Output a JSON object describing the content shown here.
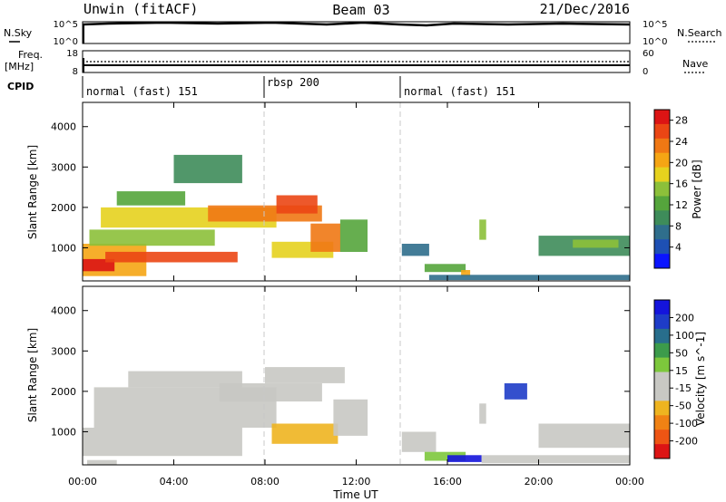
{
  "header": {
    "station": "Unwin (fitACF)",
    "beam": "Beam 03",
    "date": "21/Dec/2016"
  },
  "nsky": {
    "label": "N.Sky",
    "right_label": "N.Search",
    "ticks_left": [
      "10^5",
      "10^0"
    ],
    "ticks_right": [
      "10^5",
      "10^0"
    ]
  },
  "freq": {
    "label_line1": "Freq.",
    "label_line2": "[MHz]",
    "ticks_left": [
      "18",
      "8"
    ],
    "right_label": "Nave",
    "ticks_right": [
      "60",
      "0"
    ]
  },
  "cpid": {
    "label": "CPID",
    "segments": [
      {
        "label": "normal (fast) 151",
        "start_hour": 0,
        "end_hour": 8
      },
      {
        "label": "rbsp 200",
        "start_hour": 8,
        "end_hour": 14
      },
      {
        "label": "normal (fast) 151",
        "start_hour": 14,
        "end_hour": 24
      }
    ]
  },
  "axes": {
    "xlabel": "Time UT",
    "xticks": [
      "00:00",
      "04:00",
      "08:00",
      "12:00",
      "16:00",
      "20:00",
      "00:00"
    ],
    "ylabel": "Slant Range [km]",
    "yticks": [
      "1000",
      "2000",
      "3000",
      "4000"
    ]
  },
  "colors": {
    "power": [
      "#0a14ff",
      "#1e50b4",
      "#2f6e8c",
      "#3e8c5a",
      "#55a53c",
      "#8cc03a",
      "#e6d21e",
      "#f5a514",
      "#f07814",
      "#eb4614",
      "#dc1414"
    ],
    "velocity": [
      "#1414dc",
      "#1e3cc8",
      "#286e8c",
      "#3c9b4b",
      "#7dc83c",
      "#c8c8c3",
      "#c8c8c3",
      "#eeb420",
      "#f08214",
      "#ee5514",
      "#dc1414"
    ]
  },
  "chart_data": [
    {
      "type": "heatmap",
      "name": "power",
      "x_range_hours": [
        0,
        24
      ],
      "ylim": [
        180,
        4600
      ],
      "ylabel": "Slant Range [km]",
      "colorbar_label": "Power [dB]",
      "colorbar_ticks": [
        "4",
        "8",
        "12",
        "16",
        "20",
        "24",
        "28"
      ],
      "colorbar_range": [
        0,
        30
      ],
      "regions": [
        {
          "t": [
            0.0,
            2.8
          ],
          "r": [
            300,
            1100
          ],
          "v": 20
        },
        {
          "t": [
            0.0,
            1.4
          ],
          "r": [
            420,
            720
          ],
          "v": 29
        },
        {
          "t": [
            1.0,
            6.8
          ],
          "r": [
            640,
            900
          ],
          "v": 25
        },
        {
          "t": [
            0.3,
            5.8
          ],
          "r": [
            1050,
            1450
          ],
          "v": 14
        },
        {
          "t": [
            0.8,
            8.5
          ],
          "r": [
            1500,
            2000
          ],
          "v": 17
        },
        {
          "t": [
            5.5,
            10.5
          ],
          "r": [
            1650,
            2050
          ],
          "v": 24
        },
        {
          "t": [
            8.5,
            10.3
          ],
          "r": [
            1850,
            2300
          ],
          "v": 27
        },
        {
          "t": [
            1.5,
            4.5
          ],
          "r": [
            2050,
            2400
          ],
          "v": 11
        },
        {
          "t": [
            4.0,
            7.0
          ],
          "r": [
            2600,
            3300
          ],
          "v": 9
        },
        {
          "t": [
            8.3,
            11.0
          ],
          "r": [
            750,
            1150
          ],
          "v": 17
        },
        {
          "t": [
            10.0,
            11.3
          ],
          "r": [
            900,
            1600
          ],
          "v": 23
        },
        {
          "t": [
            11.3,
            12.5
          ],
          "r": [
            900,
            1700
          ],
          "v": 13
        },
        {
          "t": [
            14.0,
            15.2
          ],
          "r": [
            800,
            1100
          ],
          "v": 8
        },
        {
          "t": [
            15.0,
            16.8
          ],
          "r": [
            400,
            600
          ],
          "v": 13
        },
        {
          "t": [
            16.6,
            17.0
          ],
          "r": [
            300,
            450
          ],
          "v": 21
        },
        {
          "t": [
            15.2,
            24.0
          ],
          "r": [
            200,
            330
          ],
          "v": 6
        },
        {
          "t": [
            17.4,
            17.7
          ],
          "r": [
            1200,
            1700
          ],
          "v": 16
        },
        {
          "t": [
            20.0,
            24.0
          ],
          "r": [
            800,
            1300
          ],
          "v": 10
        },
        {
          "t": [
            21.5,
            23.5
          ],
          "r": [
            1000,
            1200
          ],
          "v": 14
        }
      ]
    },
    {
      "type": "heatmap",
      "name": "velocity",
      "x_range_hours": [
        0,
        24
      ],
      "ylim": [
        180,
        4600
      ],
      "ylabel": "Slant Range [km]",
      "colorbar_label": "Velocity [m s^-1]",
      "colorbar_ticks": [
        "200",
        "100",
        "50",
        "15",
        "-15",
        "-50",
        "-100",
        "-200"
      ],
      "colorbar_range": [
        -250,
        250
      ],
      "regions": [
        {
          "t": [
            0.0,
            7.0
          ],
          "r": [
            400,
            1100
          ],
          "v": 0
        },
        {
          "t": [
            0.5,
            8.5
          ],
          "r": [
            1100,
            2100
          ],
          "v": 0
        },
        {
          "t": [
            2.0,
            7.0
          ],
          "r": [
            2100,
            2500
          ],
          "v": 0
        },
        {
          "t": [
            0.2,
            1.5
          ],
          "r": [
            180,
            300
          ],
          "v": -60
        },
        {
          "t": [
            6.0,
            10.5
          ],
          "r": [
            1750,
            2200
          ],
          "v": -60
        },
        {
          "t": [
            8.0,
            11.5
          ],
          "r": [
            2200,
            2600
          ],
          "v": -40
        },
        {
          "t": [
            8.3,
            11.2
          ],
          "r": [
            700,
            1200
          ],
          "v": -80
        },
        {
          "t": [
            11.0,
            12.5
          ],
          "r": [
            900,
            1800
          ],
          "v": 0
        },
        {
          "t": [
            14.0,
            15.5
          ],
          "r": [
            500,
            1000
          ],
          "v": 0
        },
        {
          "t": [
            15.0,
            16.8
          ],
          "r": [
            280,
            500
          ],
          "v": 40
        },
        {
          "t": [
            16.0,
            17.5
          ],
          "r": [
            250,
            420
          ],
          "v": 220
        },
        {
          "t": [
            17.4,
            17.7
          ],
          "r": [
            1200,
            1700
          ],
          "v": -40
        },
        {
          "t": [
            17.5,
            24.0
          ],
          "r": [
            220,
            420
          ],
          "v": 0
        },
        {
          "t": [
            20.0,
            24.0
          ],
          "r": [
            600,
            1200
          ],
          "v": 0
        },
        {
          "t": [
            18.5,
            19.5
          ],
          "r": [
            1800,
            2200
          ],
          "v": 180
        }
      ]
    }
  ]
}
